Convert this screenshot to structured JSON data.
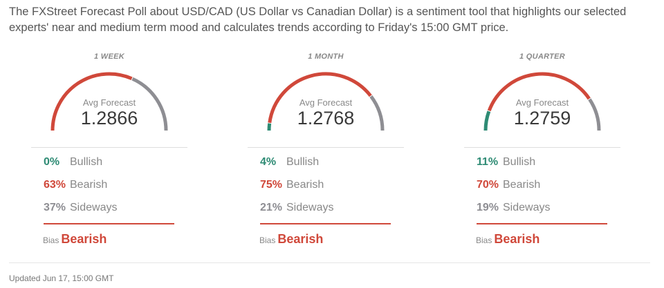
{
  "intro": "The FXStreet Forecast Poll about USD/CAD (US Dollar vs Canadian Dollar) is a sentiment tool that highlights our selected experts' near and medium term mood and calculates trends according to Friday's 15:00 GMT price.",
  "colors": {
    "bullish": "#2e8b74",
    "bearish": "#d0483a",
    "sideways": "#8e8e93"
  },
  "panels": [
    {
      "period": "1 WEEK",
      "avg_label": "Avg Forecast",
      "avg": "1.2866",
      "bullish": 0,
      "bearish": 63,
      "sideways": 37,
      "bullish_pct": "0%",
      "bearish_pct": "63%",
      "sideways_pct": "37%",
      "bullish_label": "Bullish",
      "bearish_label": "Bearish",
      "sideways_label": "Sideways",
      "bias_label": "Bias",
      "bias": "Bearish"
    },
    {
      "period": "1 MONTH",
      "avg_label": "Avg Forecast",
      "avg": "1.2768",
      "bullish": 4,
      "bearish": 75,
      "sideways": 21,
      "bullish_pct": "4%",
      "bearish_pct": "75%",
      "sideways_pct": "21%",
      "bullish_label": "Bullish",
      "bearish_label": "Bearish",
      "sideways_label": "Sideways",
      "bias_label": "Bias",
      "bias": "Bearish"
    },
    {
      "period": "1 QUARTER",
      "avg_label": "Avg Forecast",
      "avg": "1.2759",
      "bullish": 11,
      "bearish": 70,
      "sideways": 19,
      "bullish_pct": "11%",
      "bearish_pct": "70%",
      "sideways_pct": "19%",
      "bullish_label": "Bullish",
      "bearish_label": "Bearish",
      "sideways_label": "Sideways",
      "bias_label": "Bias",
      "bias": "Bearish"
    }
  ],
  "updated": "Updated Jun 17, 15:00 GMT"
}
